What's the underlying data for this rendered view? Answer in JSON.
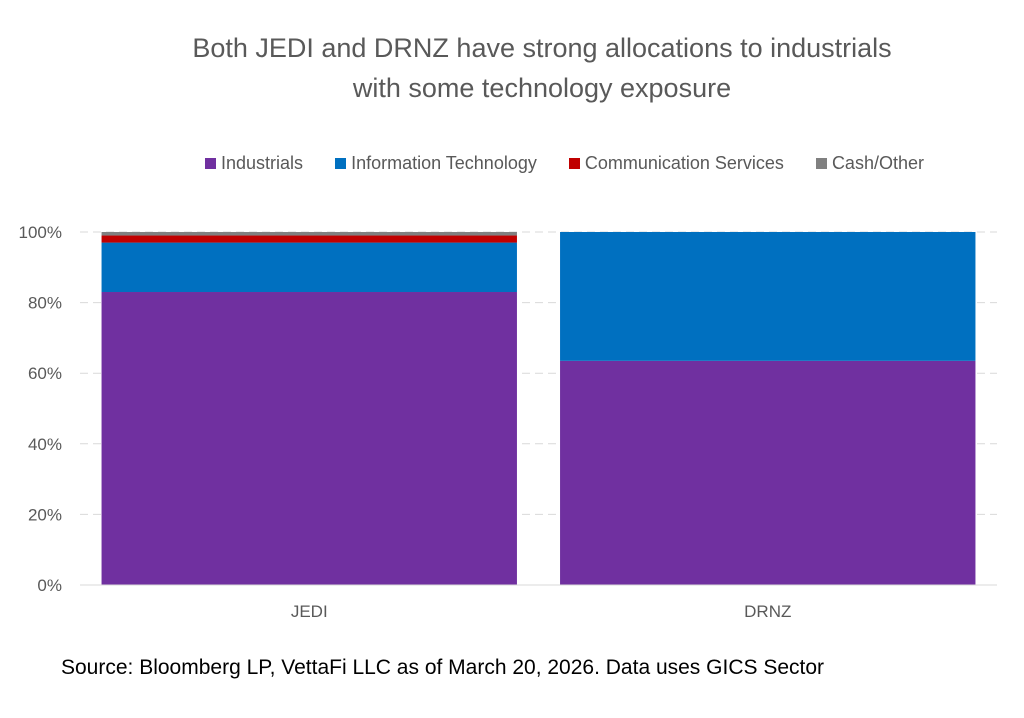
{
  "chart_data": {
    "type": "bar",
    "stacked": true,
    "title_lines": [
      "Both JEDI and DRNZ have strong allocations to industrials",
      "with some technology exposure"
    ],
    "categories": [
      "JEDI",
      "DRNZ"
    ],
    "series": [
      {
        "name": "Industrials",
        "color": "#7030A0",
        "values": [
          83,
          63.5
        ]
      },
      {
        "name": "Information Technology",
        "color": "#0070C0",
        "values": [
          14,
          36.5
        ]
      },
      {
        "name": "Communication Services",
        "color": "#C00000",
        "values": [
          2,
          0
        ]
      },
      {
        "name": "Cash/Other",
        "color": "#808080",
        "values": [
          1,
          0
        ]
      }
    ],
    "y_ticks": [
      "0%",
      "20%",
      "40%",
      "60%",
      "80%",
      "100%"
    ],
    "ylim": [
      0,
      100
    ],
    "grid": true,
    "legend_position": "top"
  },
  "footnote": "Source: Bloomberg LP, VettaFi LLC as of March 20, 2026. Data uses GICS Sector"
}
